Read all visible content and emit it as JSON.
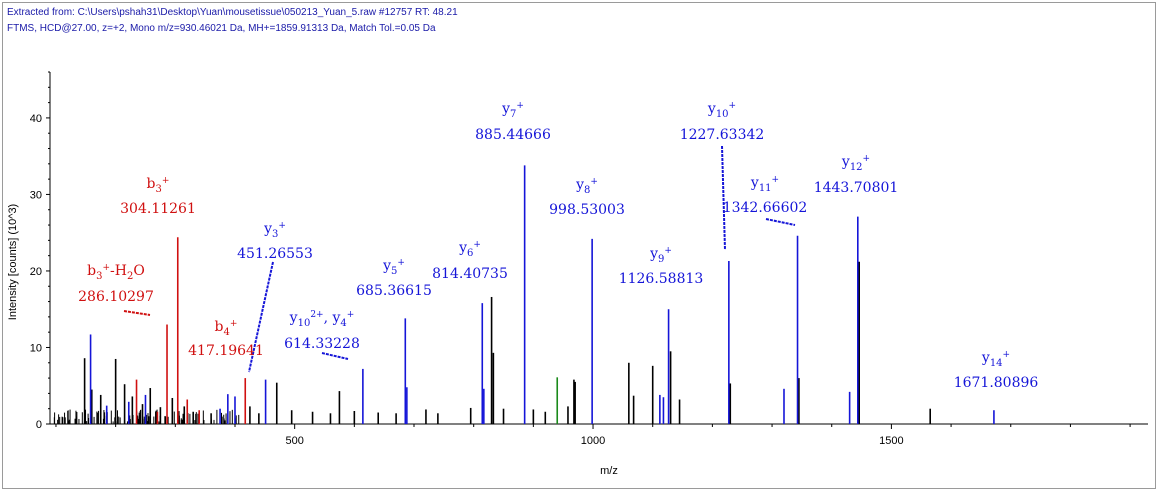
{
  "header": {
    "line1": "Extracted from: C:\\Users\\pshah31\\Desktop\\Yuan\\mousetissue\\050213_Yuan_5.raw  #12757  RT: 48.21",
    "line2": "FTMS, HCD@27.00, z=+2, Mono m/z=930.46021 Da, MH+=1859.91313 Da, Match Tol.=0.05 Da"
  },
  "colors": {
    "b_ion": "#d01010",
    "y_ion": "#1515d8",
    "unmatched": "#000000",
    "other": "#1a8a1a"
  },
  "chart_data": {
    "type": "bar",
    "xlabel": "m/z",
    "ylabel": "Intensity [counts] (10^3)",
    "xlim": [
      90,
      1930
    ],
    "ylim": [
      0,
      46
    ],
    "xticks": [
      500,
      1000,
      1500
    ],
    "yticks": [
      0,
      10,
      20,
      30,
      40
    ],
    "annotations": [
      {
        "ion": "b3+",
        "mz": "304.11261",
        "series": "b"
      },
      {
        "ion": "b3+-H2O",
        "mz": "286.10297",
        "series": "b"
      },
      {
        "ion": "b4+",
        "mz": "417.19641",
        "series": "b"
      },
      {
        "ion": "y3+",
        "mz": "451.26553",
        "series": "y"
      },
      {
        "ion": "y10 2+, y4+",
        "mz": "614.33228",
        "series": "y"
      },
      {
        "ion": "y5+",
        "mz": "685.36615",
        "series": "y"
      },
      {
        "ion": "y6+",
        "mz": "814.40735",
        "series": "y"
      },
      {
        "ion": "y7+",
        "mz": "885.44666",
        "series": "y"
      },
      {
        "ion": "y8+",
        "mz": "998.53003",
        "series": "y"
      },
      {
        "ion": "y9+",
        "mz": "1126.58813",
        "series": "y"
      },
      {
        "ion": "y10+",
        "mz": "1227.63342",
        "series": "y"
      },
      {
        "ion": "y11+",
        "mz": "1342.66602",
        "series": "y"
      },
      {
        "ion": "y12+",
        "mz": "1443.70801",
        "series": "y"
      },
      {
        "ion": "y14+",
        "mz": "1671.80896",
        "series": "y"
      }
    ],
    "peaks_b": [
      {
        "x": 304.1,
        "y": 24.4
      },
      {
        "x": 286.1,
        "y": 13.0
      },
      {
        "x": 417.2,
        "y": 6.0
      },
      {
        "x": 235.0,
        "y": 5.8
      },
      {
        "x": 320.0,
        "y": 3.2
      },
      {
        "x": 340.0,
        "y": 1.8
      },
      {
        "x": 270.0,
        "y": 1.6
      }
    ],
    "peaks_y": [
      {
        "x": 158.0,
        "y": 11.7
      },
      {
        "x": 451.3,
        "y": 5.8
      },
      {
        "x": 614.3,
        "y": 7.2
      },
      {
        "x": 685.4,
        "y": 13.8
      },
      {
        "x": 814.4,
        "y": 15.8
      },
      {
        "x": 885.4,
        "y": 33.8
      },
      {
        "x": 998.5,
        "y": 24.2
      },
      {
        "x": 1126.6,
        "y": 15.0
      },
      {
        "x": 1227.6,
        "y": 21.3
      },
      {
        "x": 1342.7,
        "y": 24.6
      },
      {
        "x": 1443.7,
        "y": 27.1
      },
      {
        "x": 1671.8,
        "y": 1.8
      },
      {
        "x": 1430.0,
        "y": 4.2
      },
      {
        "x": 1320.0,
        "y": 4.6
      },
      {
        "x": 1112.0,
        "y": 3.8
      },
      {
        "x": 1118.0,
        "y": 3.5
      },
      {
        "x": 388.0,
        "y": 3.9
      },
      {
        "x": 400.0,
        "y": 3.6
      },
      {
        "x": 250.0,
        "y": 3.8
      },
      {
        "x": 222.0,
        "y": 2.9
      },
      {
        "x": 185.0,
        "y": 2.4
      },
      {
        "x": 375.0,
        "y": 2.0
      },
      {
        "x": 688.0,
        "y": 4.8
      },
      {
        "x": 817.0,
        "y": 4.6
      }
    ],
    "peaks_other": [
      {
        "x": 148.0,
        "y": 8.6
      },
      {
        "x": 160.0,
        "y": 4.5
      },
      {
        "x": 175.0,
        "y": 3.8
      },
      {
        "x": 200.0,
        "y": 8.5
      },
      {
        "x": 215.0,
        "y": 5.2
      },
      {
        "x": 228.0,
        "y": 3.6
      },
      {
        "x": 245.0,
        "y": 2.6
      },
      {
        "x": 258.0,
        "y": 4.7
      },
      {
        "x": 275.0,
        "y": 2.2
      },
      {
        "x": 295.0,
        "y": 3.4
      },
      {
        "x": 315.0,
        "y": 2.3
      },
      {
        "x": 330.0,
        "y": 1.6
      },
      {
        "x": 360.0,
        "y": 1.4
      },
      {
        "x": 425.0,
        "y": 2.3
      },
      {
        "x": 440.0,
        "y": 1.4
      },
      {
        "x": 470.0,
        "y": 5.4
      },
      {
        "x": 495.0,
        "y": 1.8
      },
      {
        "x": 530.0,
        "y": 1.6
      },
      {
        "x": 560.0,
        "y": 1.4
      },
      {
        "x": 575.0,
        "y": 4.3
      },
      {
        "x": 600.0,
        "y": 1.7
      },
      {
        "x": 640.0,
        "y": 1.5
      },
      {
        "x": 670.0,
        "y": 1.4
      },
      {
        "x": 720.0,
        "y": 1.9
      },
      {
        "x": 740.0,
        "y": 1.4
      },
      {
        "x": 795.0,
        "y": 2.1
      },
      {
        "x": 830.0,
        "y": 16.6
      },
      {
        "x": 833.0,
        "y": 9.3
      },
      {
        "x": 850.0,
        "y": 2.0
      },
      {
        "x": 900.0,
        "y": 1.9
      },
      {
        "x": 920.0,
        "y": 1.6
      },
      {
        "x": 958.0,
        "y": 2.3
      },
      {
        "x": 968.0,
        "y": 5.8
      },
      {
        "x": 970.0,
        "y": 5.5
      },
      {
        "x": 1060.0,
        "y": 8.0
      },
      {
        "x": 1068.0,
        "y": 3.7
      },
      {
        "x": 1100.0,
        "y": 7.6
      },
      {
        "x": 1130.0,
        "y": 9.5
      },
      {
        "x": 1145.0,
        "y": 3.2
      },
      {
        "x": 1230.0,
        "y": 5.3
      },
      {
        "x": 1345.0,
        "y": 6.0
      },
      {
        "x": 1446.0,
        "y": 21.2
      },
      {
        "x": 1565.0,
        "y": 2.0
      }
    ],
    "peaks_green": [
      {
        "x": 940.0,
        "y": 6.1
      }
    ]
  }
}
